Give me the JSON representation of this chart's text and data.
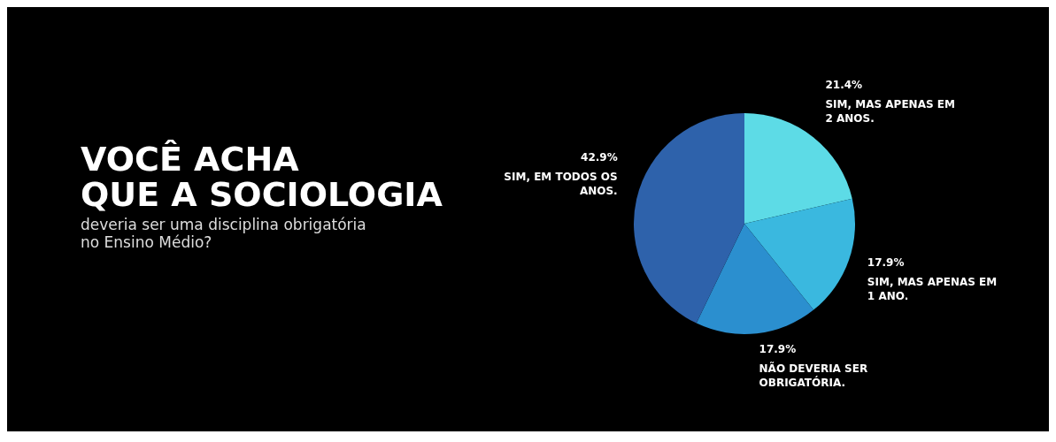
{
  "chart_data": {
    "type": "pie",
    "title": "VOCÊ ACHA\nQUE A SOCIOLOGIA",
    "subtitle": "deveria ser uma disciplina obrigatória\nno Ensino Médio?",
    "categories": [
      "SIM, MAS APENAS EM 2 ANOS.",
      "SIM, MAS APENAS EM 1 ANO.",
      "NÃO DEVERIA SER OBRIGATÓRIA.",
      "SIM, EM TODOS OS ANOS."
    ],
    "values": [
      21.4,
      17.9,
      17.9,
      42.9
    ],
    "value_labels": [
      "21.4%",
      "17.9%",
      "17.9%",
      "42.9%"
    ],
    "colors": [
      "#5ddbe6",
      "#3ab8df",
      "#2b8fcf",
      "#2e62ab"
    ],
    "legend": false
  }
}
